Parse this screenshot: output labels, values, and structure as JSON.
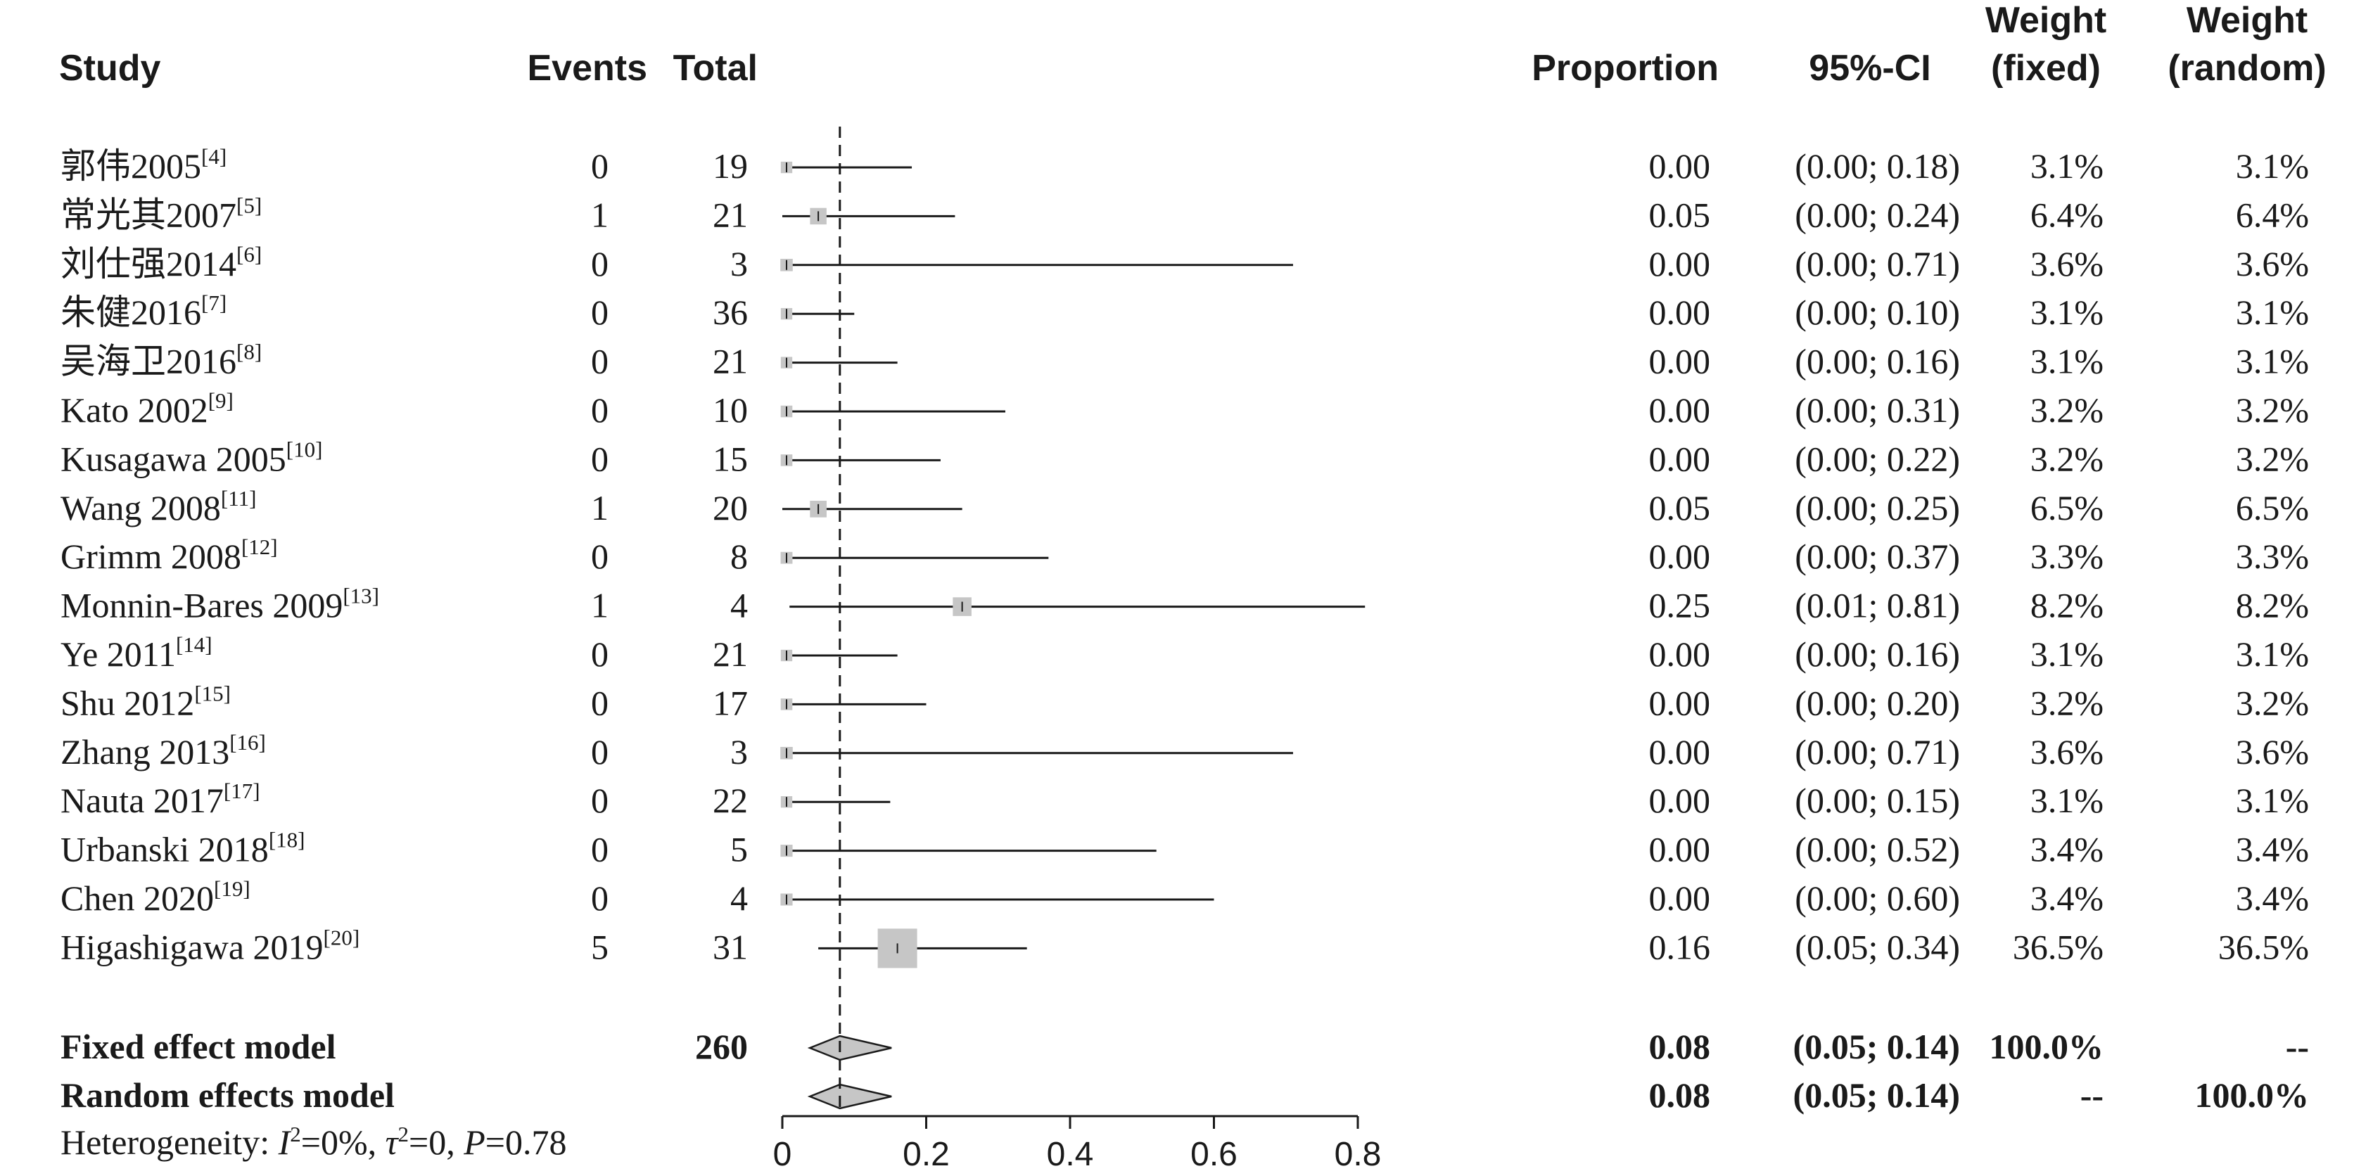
{
  "headers": {
    "study": "Study",
    "events": "Events",
    "total": "Total",
    "proportion": "Proportion",
    "ci": "95%-CI",
    "weight_fixed_1": "Weight",
    "weight_fixed_2": "(fixed)",
    "weight_random_1": "Weight",
    "weight_random_2": "(random)"
  },
  "chart_data": {
    "type": "forest",
    "xlim": [
      0,
      0.8
    ],
    "x_ticks": [
      "0",
      "0.2",
      "0.4",
      "0.6",
      "0.8"
    ],
    "x_tick_values": [
      0,
      0.2,
      0.4,
      0.6,
      0.8
    ],
    "summary_line": 0.08,
    "studies": [
      {
        "name": "郭伟2005",
        "ref": "[4]",
        "events": "0",
        "total": "19",
        "proportion": "0.00",
        "ci": "(0.00; 0.18)",
        "w_fixed": "3.1%",
        "w_random": "3.1%",
        "est": 0.0,
        "lo": 0.0,
        "hi": 0.18,
        "weight": 3.1
      },
      {
        "name": "常光其2007",
        "ref": "[5]",
        "events": "1",
        "total": "21",
        "proportion": "0.05",
        "ci": "(0.00; 0.24)",
        "w_fixed": "6.4%",
        "w_random": "6.4%",
        "est": 0.05,
        "lo": 0.0,
        "hi": 0.24,
        "weight": 6.4
      },
      {
        "name": "刘仕强2014",
        "ref": "[6]",
        "events": "0",
        "total": "3",
        "proportion": "0.00",
        "ci": "(0.00; 0.71)",
        "w_fixed": "3.6%",
        "w_random": "3.6%",
        "est": 0.0,
        "lo": 0.0,
        "hi": 0.71,
        "weight": 3.6
      },
      {
        "name": "朱健2016",
        "ref": "[7]",
        "events": "0",
        "total": "36",
        "proportion": "0.00",
        "ci": "(0.00; 0.10)",
        "w_fixed": "3.1%",
        "w_random": "3.1%",
        "est": 0.0,
        "lo": 0.0,
        "hi": 0.1,
        "weight": 3.1
      },
      {
        "name": "吴海卫2016",
        "ref": "[8]",
        "events": "0",
        "total": "21",
        "proportion": "0.00",
        "ci": "(0.00; 0.16)",
        "w_fixed": "3.1%",
        "w_random": "3.1%",
        "est": 0.0,
        "lo": 0.0,
        "hi": 0.16,
        "weight": 3.1
      },
      {
        "name": "Kato 2002",
        "ref": "[9]",
        "events": "0",
        "total": "10",
        "proportion": "0.00",
        "ci": "(0.00; 0.31)",
        "w_fixed": "3.2%",
        "w_random": "3.2%",
        "est": 0.0,
        "lo": 0.0,
        "hi": 0.31,
        "weight": 3.2
      },
      {
        "name": "Kusagawa 2005",
        "ref": "[10]",
        "events": "0",
        "total": "15",
        "proportion": "0.00",
        "ci": "(0.00; 0.22)",
        "w_fixed": "3.2%",
        "w_random": "3.2%",
        "est": 0.0,
        "lo": 0.0,
        "hi": 0.22,
        "weight": 3.2
      },
      {
        "name": "Wang 2008",
        "ref": "[11]",
        "events": "1",
        "total": "20",
        "proportion": "0.05",
        "ci": "(0.00; 0.25)",
        "w_fixed": "6.5%",
        "w_random": "6.5%",
        "est": 0.05,
        "lo": 0.0,
        "hi": 0.25,
        "weight": 6.5
      },
      {
        "name": "Grimm 2008",
        "ref": "[12]",
        "events": "0",
        "total": "8",
        "proportion": "0.00",
        "ci": "(0.00; 0.37)",
        "w_fixed": "3.3%",
        "w_random": "3.3%",
        "est": 0.0,
        "lo": 0.0,
        "hi": 0.37,
        "weight": 3.3
      },
      {
        "name": "Monnin-Bares 2009",
        "ref": "[13]",
        "events": "1",
        "total": "4",
        "proportion": "0.25",
        "ci": "(0.01; 0.81)",
        "w_fixed": "8.2%",
        "w_random": "8.2%",
        "est": 0.25,
        "lo": 0.01,
        "hi": 0.81,
        "weight": 8.2
      },
      {
        "name": "Ye 2011",
        "ref": "[14]",
        "events": "0",
        "total": "21",
        "proportion": "0.00",
        "ci": "(0.00; 0.16)",
        "w_fixed": "3.1%",
        "w_random": "3.1%",
        "est": 0.0,
        "lo": 0.0,
        "hi": 0.16,
        "weight": 3.1
      },
      {
        "name": "Shu 2012",
        "ref": "[15]",
        "events": "0",
        "total": "17",
        "proportion": "0.00",
        "ci": "(0.00; 0.20)",
        "w_fixed": "3.2%",
        "w_random": "3.2%",
        "est": 0.0,
        "lo": 0.0,
        "hi": 0.2,
        "weight": 3.2
      },
      {
        "name": "Zhang 2013",
        "ref": "[16]",
        "events": "0",
        "total": "3",
        "proportion": "0.00",
        "ci": "(0.00; 0.71)",
        "w_fixed": "3.6%",
        "w_random": "3.6%",
        "est": 0.0,
        "lo": 0.0,
        "hi": 0.71,
        "weight": 3.6
      },
      {
        "name": "Nauta 2017",
        "ref": "[17]",
        "events": "0",
        "total": "22",
        "proportion": "0.00",
        "ci": "(0.00; 0.15)",
        "w_fixed": "3.1%",
        "w_random": "3.1%",
        "est": 0.0,
        "lo": 0.0,
        "hi": 0.15,
        "weight": 3.1
      },
      {
        "name": "Urbanski 2018",
        "ref": "[18]",
        "events": "0",
        "total": "5",
        "proportion": "0.00",
        "ci": "(0.00; 0.52)",
        "w_fixed": "3.4%",
        "w_random": "3.4%",
        "est": 0.0,
        "lo": 0.0,
        "hi": 0.52,
        "weight": 3.4
      },
      {
        "name": "Chen 2020",
        "ref": "[19]",
        "events": "0",
        "total": "4",
        "proportion": "0.00",
        "ci": "(0.00; 0.60)",
        "w_fixed": "3.4%",
        "w_random": "3.4%",
        "est": 0.0,
        "lo": 0.0,
        "hi": 0.6,
        "weight": 3.4
      },
      {
        "name": "Higashigawa 2019",
        "ref": "[20]",
        "events": "5",
        "total": "31",
        "proportion": "0.16",
        "ci": "(0.05; 0.34)",
        "w_fixed": "36.5%",
        "w_random": "36.5%",
        "est": 0.16,
        "lo": 0.05,
        "hi": 0.34,
        "weight": 36.5
      }
    ],
    "models": [
      {
        "name": "Fixed effect model",
        "events": "",
        "total": "260",
        "proportion": "0.08",
        "ci": "(0.05; 0.14)",
        "w_fixed": "100.0%",
        "w_random": "--",
        "est": 0.08,
        "lo": 0.05,
        "hi": 0.14
      },
      {
        "name": "Random effects model",
        "events": "",
        "total": "",
        "proportion": "0.08",
        "ci": "(0.05; 0.14)",
        "w_fixed": "--",
        "w_random": "100.0%",
        "est": 0.08,
        "lo": 0.05,
        "hi": 0.14
      }
    ],
    "heterogeneity": {
      "prefix": "Heterogeneity: ",
      "i2_label": "I",
      "i2_value": "=0%, ",
      "tau2_label": "τ",
      "tau2_value": "=0, ",
      "p_label": "P",
      "p_value": "=0.78"
    }
  }
}
